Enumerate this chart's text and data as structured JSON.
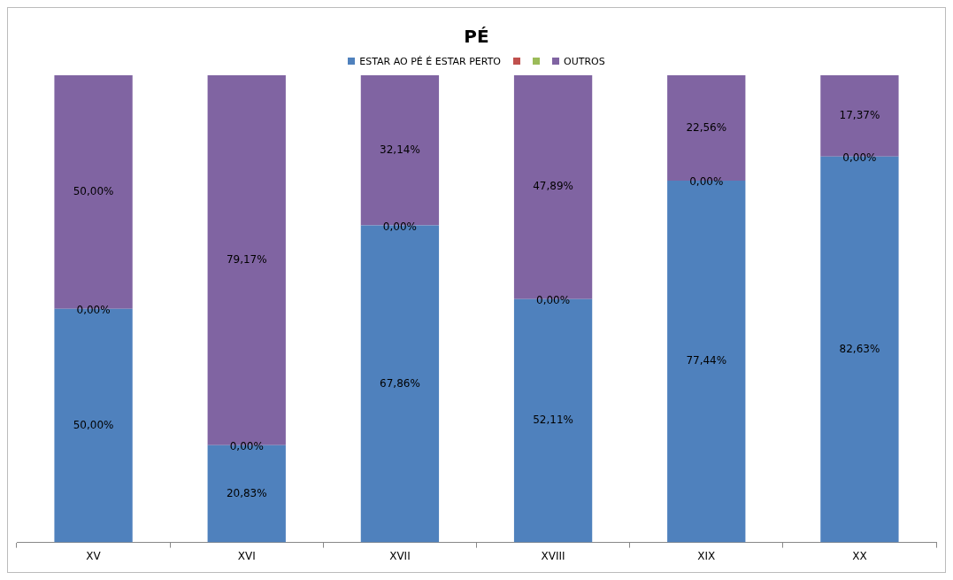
{
  "chart_data": {
    "type": "bar",
    "title": "PÉ",
    "stacked": true,
    "legend": "top",
    "grid": false,
    "tick_labels": "x",
    "ylim": [
      0,
      100
    ],
    "categories": [
      "XV",
      "XVI",
      "XVII",
      "XVIII",
      "XIX",
      "XX"
    ],
    "series": [
      {
        "name": "ESTAR AO PÉ É ESTAR PERTO",
        "color": "#4f81bd",
        "values": [
          50,
          20.83,
          67.86,
          52.11,
          77.44,
          82.63
        ],
        "value_labels": [
          "50,00%",
          "20,83%",
          "67,86%",
          "52,11%",
          "77,44%",
          "82,63%"
        ]
      },
      {
        "color": "#c0504d",
        "values": [
          0,
          0,
          0,
          0,
          0,
          0
        ]
      },
      {
        "color": "#9bbb59",
        "values": [
          0,
          0,
          0,
          0,
          0,
          0
        ]
      },
      {
        "name": "OUTROS",
        "color": "#8064a2",
        "values": [
          50,
          79.17,
          32.14,
          47.89,
          22.56,
          17.37
        ],
        "value_labels": [
          "50,00%",
          "79,17%",
          "32,14%",
          "47,89%",
          "22,56%",
          "17,37%"
        ]
      }
    ],
    "annotations": [
      {
        "text": "0,00%",
        "x": "XV",
        "y": 50
      },
      {
        "text": "0,00%",
        "x": "XVI",
        "y": 20.83
      },
      {
        "text": "0,00%",
        "x": "XVII",
        "y": 67.86
      },
      {
        "text": "0,00%",
        "x": "XVIII",
        "y": 52.11
      },
      {
        "text": "0,00%",
        "x": "XIX",
        "y": 77.44
      },
      {
        "text": "0,00%",
        "x": "XX",
        "y": 82.63
      }
    ]
  }
}
